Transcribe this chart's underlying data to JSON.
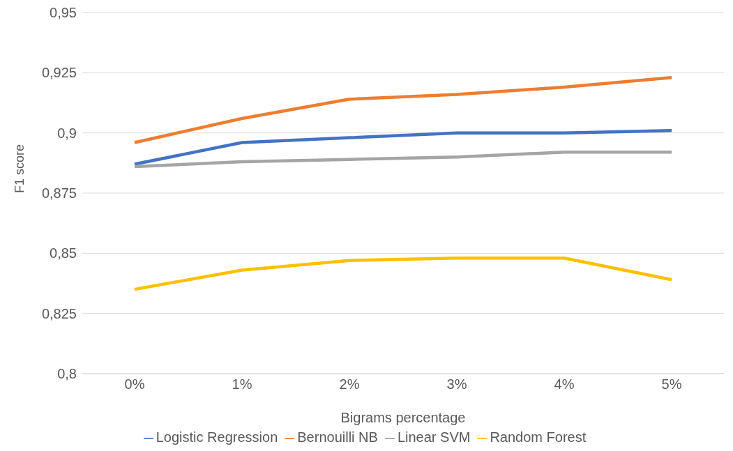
{
  "chart_data": {
    "type": "line",
    "xlabel": "Bigrams percentage",
    "ylabel": "F1 score",
    "categories": [
      "0%",
      "1%",
      "2%",
      "3%",
      "4%",
      "5%"
    ],
    "series": [
      {
        "name": "Logistic Regression",
        "color": "#4472c4",
        "values": [
          0.887,
          0.896,
          0.898,
          0.9,
          0.9,
          0.901
        ]
      },
      {
        "name": "Bernouilli NB",
        "color": "#ed7d31",
        "values": [
          0.896,
          0.906,
          0.914,
          0.916,
          0.919,
          0.923
        ]
      },
      {
        "name": "Linear SVM",
        "color": "#a5a5a5",
        "values": [
          0.886,
          0.888,
          0.889,
          0.89,
          0.892,
          0.892
        ]
      },
      {
        "name": "Random Forest",
        "color": "#ffc000",
        "values": [
          0.835,
          0.843,
          0.847,
          0.848,
          0.848,
          0.839
        ]
      }
    ],
    "ylim": [
      0.8,
      0.95
    ],
    "yticks": [
      {
        "value": 0.8,
        "label": "0,8"
      },
      {
        "value": 0.825,
        "label": "0,825"
      },
      {
        "value": 0.85,
        "label": "0,85"
      },
      {
        "value": 0.875,
        "label": "0,875"
      },
      {
        "value": 0.9,
        "label": "0,9"
      },
      {
        "value": 0.925,
        "label": "0,925"
      },
      {
        "value": 0.95,
        "label": "0,95"
      }
    ],
    "grid": "y",
    "legend": "bottom",
    "marker": "none",
    "line_style": "solid"
  }
}
